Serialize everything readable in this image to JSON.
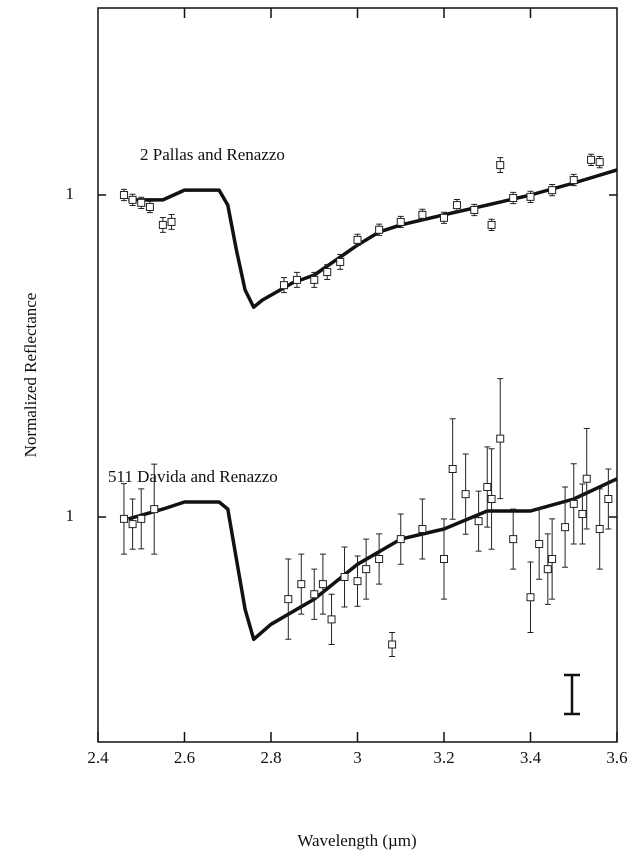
{
  "chart_data": [
    {
      "type": "scatter",
      "title": "2 Pallas and Renazzo",
      "ylabel": "Normalized Reflectance",
      "xlim": [
        2.4,
        3.6
      ],
      "xticks": [
        2.6,
        2.8,
        3,
        3.2,
        3.4
      ],
      "ylim": [
        0.5,
        1.5
      ],
      "yticks": [
        1
      ],
      "series": [
        {
          "type": "line",
          "color": "#111111",
          "x": [
            2.47,
            2.55,
            2.6,
            2.68,
            2.7,
            2.72,
            2.74,
            2.76,
            2.78,
            2.85,
            2.9,
            3.0,
            3.05,
            3.1,
            3.2,
            3.3,
            3.4,
            3.5,
            3.6
          ],
          "values": [
            0.987,
            0.987,
            1.013,
            1.013,
            0.973,
            0.853,
            0.746,
            0.7,
            0.719,
            0.765,
            0.786,
            0.866,
            0.901,
            0.92,
            0.947,
            0.973,
            1.0,
            1.032,
            1.067
          ]
        },
        {
          "type": "points",
          "color": "#222222",
          "x": [
            2.46,
            2.48,
            2.5,
            2.52,
            2.55,
            2.57,
            2.83,
            2.86,
            2.9,
            2.93,
            2.96,
            3.0,
            3.05,
            3.1,
            3.15,
            3.2,
            3.23,
            3.27,
            3.31,
            3.33,
            3.36,
            3.4,
            3.45,
            3.5,
            3.54,
            3.56
          ],
          "values": [
            1.0,
            0.987,
            0.979,
            0.968,
            0.92,
            0.928,
            0.759,
            0.773,
            0.773,
            0.794,
            0.821,
            0.88,
            0.907,
            0.928,
            0.947,
            0.939,
            0.973,
            0.96,
            0.92,
            1.08,
            0.992,
            0.995,
            1.013,
            1.04,
            1.094,
            1.088
          ],
          "errors": [
            0.015,
            0.015,
            0.015,
            0.015,
            0.02,
            0.02,
            0.02,
            0.02,
            0.02,
            0.02,
            0.02,
            0.015,
            0.015,
            0.015,
            0.015,
            0.015,
            0.015,
            0.015,
            0.015,
            0.02,
            0.015,
            0.015,
            0.015,
            0.015,
            0.015,
            0.015
          ]
        }
      ]
    },
    {
      "type": "scatter",
      "title": "511 Davida and Renazzo",
      "xlabel": "Wavelength (µm)",
      "xlim": [
        2.4,
        3.6
      ],
      "xticks": [
        2.4,
        2.6,
        2.8,
        3,
        3.2,
        3.4,
        3.6
      ],
      "ylim": [
        0.4,
        1.36
      ],
      "yticks": [
        1
      ],
      "series": [
        {
          "type": "line",
          "color": "#111111",
          "x": [
            2.47,
            2.55,
            2.6,
            2.68,
            2.7,
            2.72,
            2.74,
            2.76,
            2.8,
            2.9,
            3.0,
            3.1,
            3.2,
            3.3,
            3.4,
            3.5,
            3.6
          ],
          "values": [
            0.995,
            1.021,
            1.04,
            1.04,
            1.021,
            0.888,
            0.754,
            0.674,
            0.714,
            0.781,
            0.874,
            0.941,
            0.968,
            1.016,
            1.016,
            1.048,
            1.102
          ]
        },
        {
          "type": "points",
          "color": "#222222",
          "x": [
            2.46,
            2.48,
            2.5,
            2.53,
            2.84,
            2.87,
            2.9,
            2.92,
            2.94,
            2.97,
            3.0,
            3.02,
            3.05,
            3.08,
            3.1,
            3.15,
            3.2,
            3.22,
            3.25,
            3.28,
            3.3,
            3.31,
            3.33,
            3.36,
            3.4,
            3.42,
            3.44,
            3.45,
            3.48,
            3.5,
            3.52,
            3.53,
            3.56,
            3.58
          ],
          "values": [
            0.995,
            0.981,
            0.995,
            1.021,
            0.781,
            0.821,
            0.794,
            0.821,
            0.727,
            0.84,
            0.829,
            0.861,
            0.888,
            0.66,
            0.941,
            0.968,
            0.888,
            1.128,
            1.061,
            0.989,
            1.08,
            1.048,
            1.209,
            0.941,
            0.786,
            0.928,
            0.861,
            0.888,
            0.973,
            1.035,
            1.008,
            1.102,
            0.968,
            1.048
          ],
          "errors": [
            0.094,
            0.067,
            0.08,
            0.12,
            0.107,
            0.08,
            0.067,
            0.08,
            0.067,
            0.08,
            0.067,
            0.08,
            0.067,
            0.032,
            0.067,
            0.08,
            0.107,
            0.134,
            0.107,
            0.08,
            0.107,
            0.134,
            0.16,
            0.08,
            0.094,
            0.094,
            0.094,
            0.107,
            0.107,
            0.107,
            0.08,
            0.134,
            0.107,
            0.08
          ]
        }
      ]
    }
  ]
}
